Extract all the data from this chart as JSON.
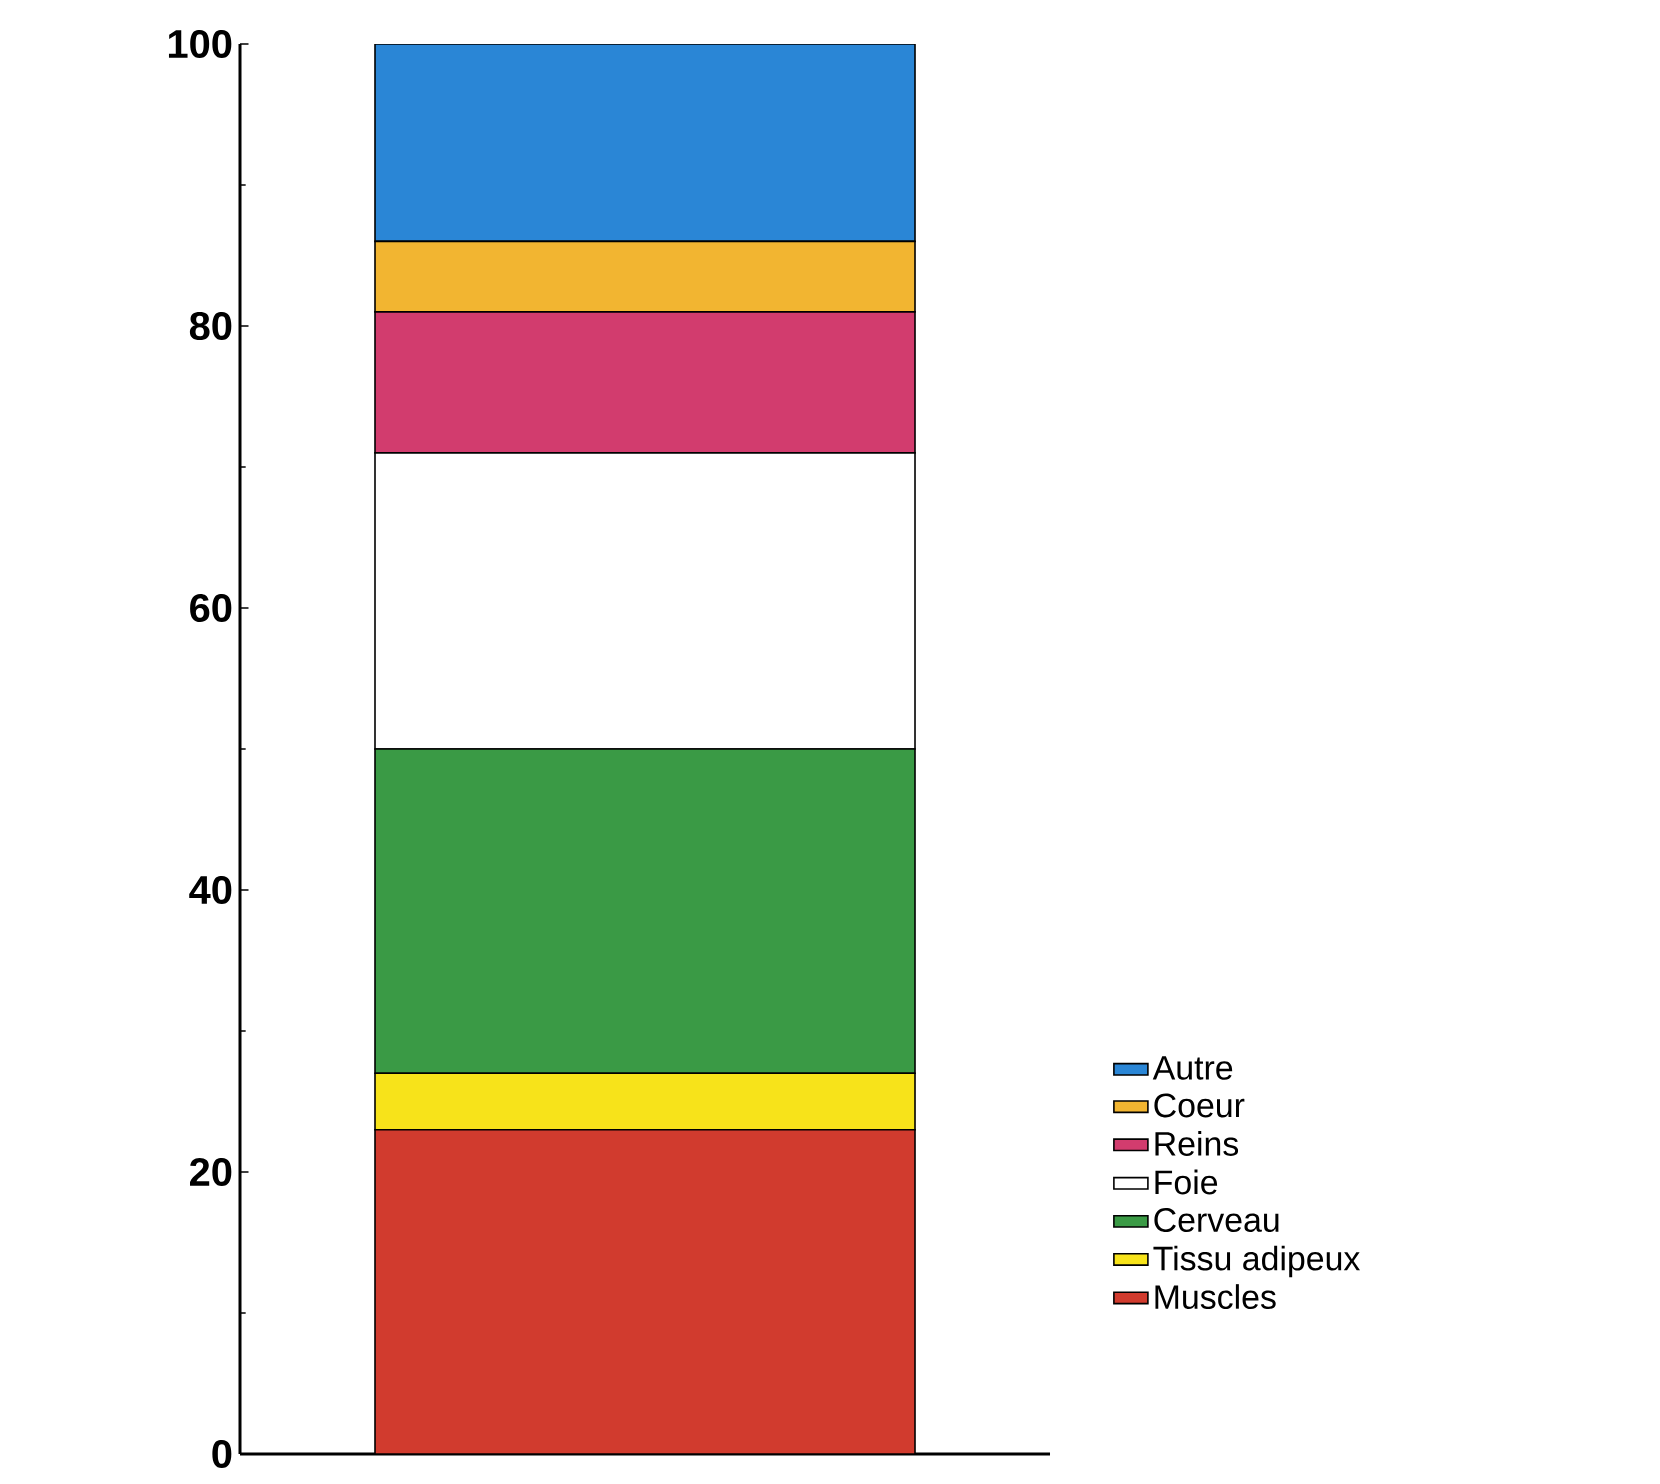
{
  "chart_data": {
    "type": "bar",
    "stacked": true,
    "categories": [
      null
    ],
    "series": [
      {
        "name": "Muscles",
        "color": "#d13b2e",
        "values": [
          23
        ]
      },
      {
        "name": "Tissu adipeux",
        "color": "#f7e31a",
        "values": [
          4
        ]
      },
      {
        "name": "Cerveau",
        "color": "#3a9a45",
        "values": [
          23
        ]
      },
      {
        "name": "Foie",
        "color": "#ffffff",
        "values": [
          21
        ]
      },
      {
        "name": "Reins",
        "color": "#d23c6e",
        "values": [
          10
        ]
      },
      {
        "name": "Coeur",
        "color": "#f2b531",
        "values": [
          5
        ]
      },
      {
        "name": "Autre",
        "color": "#2a86d6",
        "values": [
          14
        ]
      }
    ],
    "ylim": [
      0,
      100
    ],
    "yticks": [
      0,
      20,
      40,
      60,
      80,
      100
    ],
    "legend": "right"
  }
}
